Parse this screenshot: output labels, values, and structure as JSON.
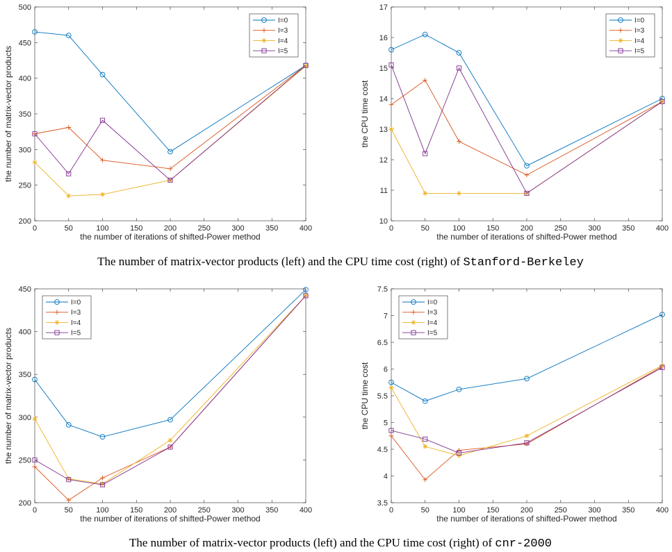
{
  "colors": {
    "I=0": "#0072BD",
    "I=3": "#D95319",
    "I=4": "#EDB120",
    "I=5": "#7E2F8E",
    "axis": "#262626",
    "background": "#ffffff"
  },
  "markers": {
    "I=0": "circle",
    "I=3": "plus",
    "I=4": "asterisk",
    "I=5": "square"
  },
  "captions": [
    {
      "prefix": "The number of matrix-vector products (left) and the CPU time cost (right) of ",
      "dataset": "Stanford-Berkeley"
    },
    {
      "prefix": "The number of matrix-vector products (left) and the CPU time cost (right) of ",
      "dataset": "cnr-2000"
    }
  ],
  "chart_data": [
    {
      "type": "line",
      "xlabel": "the number of iterations of shifted-Power method",
      "ylabel": "the number of matrix-vector products",
      "xlim": [
        0,
        400
      ],
      "ylim": [
        200,
        500
      ],
      "xticks": [
        0,
        50,
        100,
        150,
        200,
        250,
        300,
        350,
        400
      ],
      "yticks": [
        200,
        250,
        300,
        350,
        400,
        450,
        500
      ],
      "ytick_labels": [
        "200",
        "250",
        "300",
        "350",
        "400",
        "450",
        "500"
      ],
      "legend_position": "top-right",
      "x": [
        0,
        50,
        100,
        200,
        400
      ],
      "series": [
        {
          "name": "I=0",
          "values": [
            465,
            460,
            405,
            297,
            418
          ]
        },
        {
          "name": "I=3",
          "values": [
            322,
            331,
            285,
            273,
            418
          ]
        },
        {
          "name": "I=4",
          "values": [
            282,
            235,
            237,
            257,
            417
          ]
        },
        {
          "name": "I=5",
          "values": [
            322,
            266,
            341,
            257,
            418
          ]
        }
      ]
    },
    {
      "type": "line",
      "xlabel": "the number of iterations of shifted-Power method",
      "ylabel": "the CPU time cost",
      "xlim": [
        0,
        400
      ],
      "ylim": [
        10,
        17
      ],
      "xticks": [
        0,
        50,
        100,
        150,
        200,
        250,
        300,
        350,
        400
      ],
      "yticks": [
        10,
        11,
        12,
        13,
        14,
        15,
        16,
        17
      ],
      "ytick_labels": [
        "10",
        "11",
        "12",
        "13",
        "14",
        "15",
        "16",
        "17"
      ],
      "legend_position": "top-right",
      "x": [
        0,
        50,
        100,
        200,
        400
      ],
      "series": [
        {
          "name": "I=0",
          "values": [
            15.6,
            16.1,
            15.5,
            11.8,
            14.0
          ]
        },
        {
          "name": "I=3",
          "values": [
            13.8,
            14.6,
            12.6,
            11.5,
            13.9
          ]
        },
        {
          "name": "I=4",
          "values": [
            13.0,
            10.9,
            10.9,
            10.9,
            13.9
          ]
        },
        {
          "name": "I=5",
          "values": [
            15.1,
            12.2,
            15.0,
            10.9,
            13.9
          ]
        }
      ]
    },
    {
      "type": "line",
      "xlabel": "the number of iterations of shifted-Power method",
      "ylabel": "the number of matrix-vector products",
      "xlim": [
        0,
        400
      ],
      "ylim": [
        200,
        450
      ],
      "xticks": [
        0,
        50,
        100,
        150,
        200,
        250,
        300,
        350,
        400
      ],
      "yticks": [
        200,
        250,
        300,
        350,
        400,
        450
      ],
      "ytick_labels": [
        "200",
        "250",
        "300",
        "350",
        "400",
        "450"
      ],
      "legend_position": "top-left",
      "x": [
        0,
        50,
        100,
        200,
        400
      ],
      "series": [
        {
          "name": "I=0",
          "values": [
            344,
            291,
            277,
            297,
            449
          ]
        },
        {
          "name": "I=3",
          "values": [
            242,
            203,
            229,
            265,
            442
          ]
        },
        {
          "name": "I=4",
          "values": [
            298,
            228,
            222,
            273,
            442
          ]
        },
        {
          "name": "I=5",
          "values": [
            250,
            227,
            221,
            265,
            442
          ]
        }
      ]
    },
    {
      "type": "line",
      "xlabel": "the number of iterations of shifted-Power method",
      "ylabel": "the CPU time cost",
      "xlim": [
        0,
        400
      ],
      "ylim": [
        3.5,
        7.5
      ],
      "xticks": [
        0,
        50,
        100,
        150,
        200,
        250,
        300,
        350,
        400
      ],
      "yticks": [
        3.5,
        4,
        4.5,
        5,
        5.5,
        6,
        6.5,
        7,
        7.5
      ],
      "ytick_labels": [
        "3.5",
        "4",
        "4.5",
        "5",
        "5.5",
        "6",
        "6.5",
        "7",
        "7.5"
      ],
      "legend_position": "top-left",
      "x": [
        0,
        50,
        100,
        200,
        400
      ],
      "series": [
        {
          "name": "I=0",
          "values": [
            5.75,
            5.4,
            5.62,
            5.82,
            7.02
          ]
        },
        {
          "name": "I=3",
          "values": [
            4.75,
            3.93,
            4.48,
            4.6,
            6.05
          ]
        },
        {
          "name": "I=4",
          "values": [
            5.65,
            4.55,
            4.38,
            4.75,
            6.07
          ]
        },
        {
          "name": "I=5",
          "values": [
            4.85,
            4.69,
            4.43,
            4.62,
            6.03
          ]
        }
      ]
    }
  ]
}
